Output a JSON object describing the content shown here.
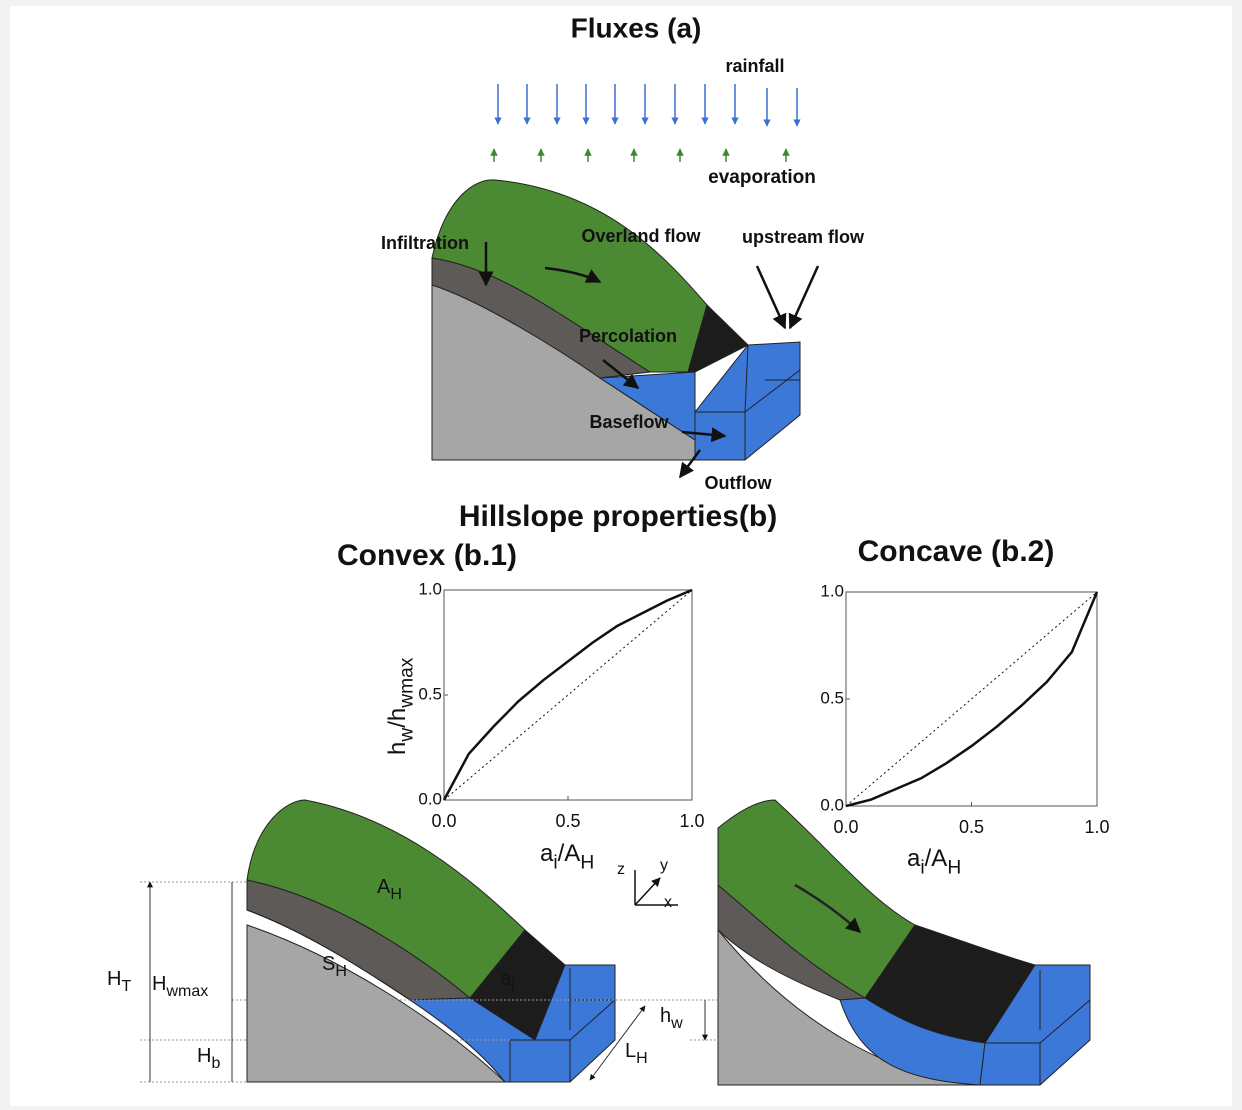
{
  "diagram": {
    "title_a": "Fluxes (a)",
    "rainfall": "rainfall",
    "evaporation": "evaporation",
    "infiltration": "Infiltration",
    "overland": "Overland flow",
    "upstream": "upstream flow",
    "percolation": "Percolation",
    "baseflow": "Baseflow",
    "outflow": "Outflow",
    "title_b": "Hillslope properties(b)",
    "convex": "Convex (b.1)",
    "concave": "Concave (b.2)",
    "symbols": [
      [
        "A",
        "H"
      ],
      [
        "S",
        "H"
      ],
      [
        "a",
        "i"
      ],
      [
        "H",
        "T"
      ],
      [
        "H",
        "wmax"
      ],
      [
        "H",
        "b"
      ],
      [
        "h",
        "w"
      ],
      [
        "L",
        "H"
      ]
    ],
    "axes": [
      "z",
      "y",
      "x"
    ]
  },
  "chart_data": [
    {
      "type": "line",
      "x_label": [
        "a",
        "i",
        "/A",
        "H"
      ],
      "y_label": [
        "h",
        "w",
        "/h",
        "wmax"
      ],
      "x": [
        0,
        0.1,
        0.2,
        0.3,
        0.4,
        0.5,
        0.6,
        0.7,
        0.8,
        0.9,
        1.0
      ],
      "series": [
        {
          "color": "#111111",
          "values": [
            0,
            0.22,
            0.35,
            0.47,
            0.57,
            0.66,
            0.75,
            0.83,
            0.89,
            0.95,
            1.0
          ]
        }
      ],
      "xlim": [
        0,
        1
      ],
      "ylim": [
        0,
        1
      ],
      "xticks": [
        {
          "value": 0,
          "label": "0.0"
        },
        {
          "value": 0.5,
          "label": "0.5"
        },
        {
          "value": 1,
          "label": "1.0"
        }
      ],
      "yticks": [
        {
          "value": 0,
          "label": "0.0"
        },
        {
          "value": 0.5,
          "label": "0.5"
        },
        {
          "value": 1,
          "label": "1.0"
        }
      ]
    },
    {
      "type": "line",
      "x_label": [
        "a",
        "i",
        "/A",
        "H"
      ],
      "x": [
        0,
        0.1,
        0.2,
        0.3,
        0.4,
        0.5,
        0.6,
        0.7,
        0.8,
        0.9,
        1.0
      ],
      "series": [
        {
          "color": "#111111",
          "values": [
            0,
            0.03,
            0.08,
            0.13,
            0.2,
            0.28,
            0.37,
            0.47,
            0.58,
            0.72,
            1.0
          ]
        }
      ],
      "xlim": [
        0,
        1
      ],
      "ylim": [
        0,
        1
      ],
      "xticks": [
        {
          "value": 0,
          "label": "0.0"
        },
        {
          "value": 0.5,
          "label": "0.5"
        },
        {
          "value": 1,
          "label": "1.0"
        }
      ],
      "yticks": [
        {
          "value": 0,
          "label": "0.0"
        },
        {
          "value": 0.5,
          "label": "0.5"
        },
        {
          "value": 1,
          "label": "1.0"
        }
      ]
    }
  ]
}
